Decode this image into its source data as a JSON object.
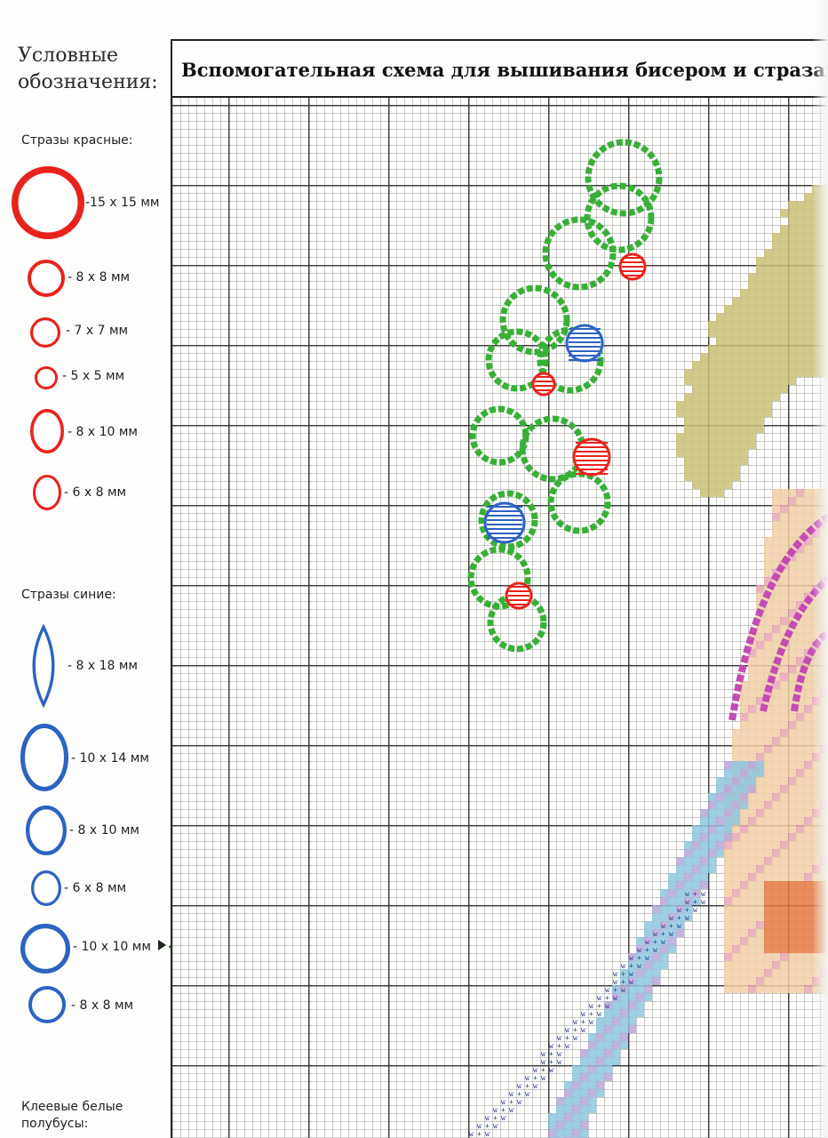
{
  "legend": {
    "title": "Условные\nобозначения:",
    "red_heading": "Стразы красные:",
    "red_color": "#e8231c",
    "red_items": [
      {
        "label": "-15 x 15 мм",
        "shape": "circle"
      },
      {
        "label": "- 8 x 8 мм",
        "shape": "circle"
      },
      {
        "label": "- 7 x 7 мм",
        "shape": "circle"
      },
      {
        "label": "- 5 x 5 мм",
        "shape": "circle"
      },
      {
        "label": "- 8 x 10 мм",
        "shape": "oval"
      },
      {
        "label": "- 6 x 8 мм",
        "shape": "oval"
      }
    ],
    "blue_heading": "Стразы синие:",
    "blue_color": "#2d63c0",
    "blue_items": [
      {
        "label": "- 8 x 18 мм",
        "shape": "navette"
      },
      {
        "label": "- 10 x 14 мм",
        "shape": "oval"
      },
      {
        "label": "- 8 x 10 мм",
        "shape": "oval"
      },
      {
        "label": "- 6 x 8 мм",
        "shape": "oval"
      },
      {
        "label": "- 10 x 10 мм",
        "shape": "circle"
      },
      {
        "label": "- 8 x 8 мм",
        "shape": "circle"
      }
    ],
    "white_heading": "Клеевые белые\nполубусы:"
  },
  "chart": {
    "title": "Вспомогательная схема для вышивания бисером и стразами"
  },
  "colors": {
    "bead_green": "#37b035",
    "bead_magenta": "#c54bb4",
    "fill_olive": "#c9c177",
    "fill_skin": "#f0cfa6",
    "fill_blue": "#8fc6de",
    "fill_pink": "#e9a6b7",
    "fill_orange": "#e6793f"
  }
}
